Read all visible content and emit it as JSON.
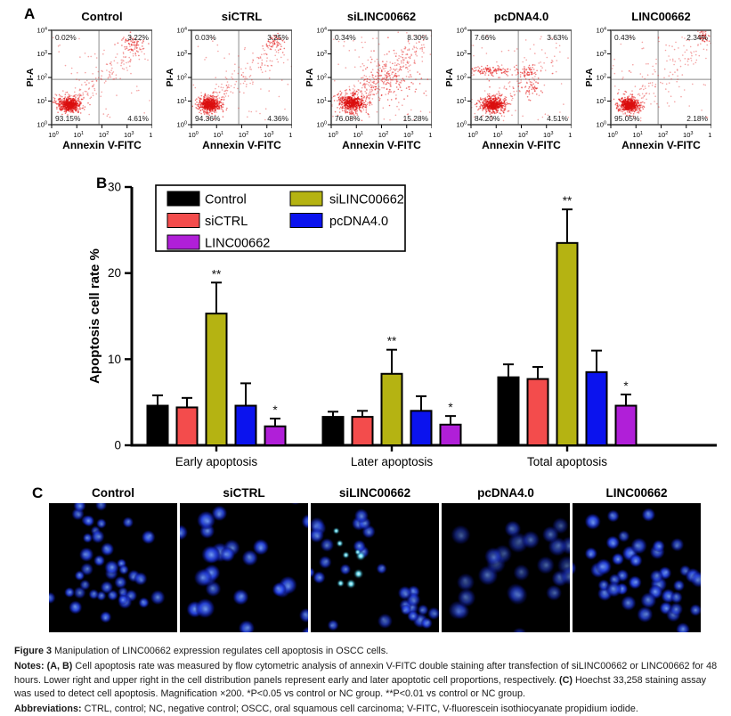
{
  "panel_a": {
    "label": "A",
    "y_axis_label": "PI-A",
    "x_axis_label": "Annexin V-FITC",
    "axis_base": "10",
    "y_tick_exponents": [
      "4",
      "3",
      "2",
      "1",
      "0"
    ],
    "x_tick_exponents": [
      "0",
      "1",
      "2",
      "3",
      "4"
    ],
    "dot_color": "#e41a1a",
    "plots": [
      {
        "title": "Control",
        "quadrants": {
          "ul": "0.02%",
          "ur": "3.22%",
          "ll": "93.15%",
          "lr": "4.61%"
        }
      },
      {
        "title": "siCTRL",
        "quadrants": {
          "ul": "0.03%",
          "ur": "3.25%",
          "ll": "94.36%",
          "lr": "4.36%"
        }
      },
      {
        "title": "siLINC00662",
        "quadrants": {
          "ul": "0.34%",
          "ur": "8.30%",
          "ll": "76.08%",
          "lr": "15.28%"
        }
      },
      {
        "title": "pcDNA4.0",
        "quadrants": {
          "ul": "7.66%",
          "ur": "3.63%",
          "ll": "84.20%",
          "lr": "4.51%"
        }
      },
      {
        "title": "LINC00662",
        "quadrants": {
          "ul": "0.43%",
          "ur": "2.34%",
          "ll": "95.05%",
          "lr": "2.18%"
        }
      }
    ]
  },
  "panel_b": {
    "label": "B"
  },
  "chart_data": {
    "type": "bar",
    "title": "",
    "xlabel": "",
    "ylabel": "Apoptosis cell rate %",
    "ylim": [
      0,
      30
    ],
    "yticks": [
      0,
      10,
      20,
      30
    ],
    "grid": false,
    "legend_position": "top-left",
    "categories": [
      "Early apoptosis",
      "Later apoptosis",
      "Total apoptosis"
    ],
    "series": [
      {
        "name": "Control",
        "color": "#000000",
        "values": [
          4.6,
          3.3,
          7.9
        ],
        "errors": [
          1.2,
          0.6,
          1.5
        ],
        "sig": [
          "",
          "",
          ""
        ]
      },
      {
        "name": "siCTRL",
        "color": "#f34c4c",
        "values": [
          4.4,
          3.3,
          7.7
        ],
        "errors": [
          1.1,
          0.7,
          1.4
        ],
        "sig": [
          "",
          "",
          ""
        ]
      },
      {
        "name": "siLINC00662",
        "color": "#b5b312",
        "values": [
          15.3,
          8.3,
          23.5
        ],
        "errors": [
          3.6,
          2.8,
          3.9
        ],
        "sig": [
          "**",
          "**",
          "**"
        ]
      },
      {
        "name": "pcDNA4.0",
        "color": "#0b13ee",
        "values": [
          4.6,
          4.0,
          8.5
        ],
        "errors": [
          2.6,
          1.7,
          2.5
        ],
        "sig": [
          "",
          "",
          ""
        ]
      },
      {
        "name": "LINC00662",
        "color": "#b01fd8",
        "values": [
          2.2,
          2.4,
          4.6
        ],
        "errors": [
          0.9,
          1.0,
          1.3
        ],
        "sig": [
          "*",
          "*",
          "*"
        ]
      }
    ],
    "legend_columns": [
      [
        "Control",
        "siCTRL",
        "LINC00662"
      ],
      [
        "siLINC00662",
        "pcDNA4.0"
      ]
    ]
  },
  "panel_c": {
    "label": "C",
    "images": [
      {
        "title": "Control"
      },
      {
        "title": "siCTRL"
      },
      {
        "title": "siLINC00662"
      },
      {
        "title": "pcDNA4.0"
      },
      {
        "title": "LINC00662"
      }
    ]
  },
  "caption": {
    "figure_label": "Figure 3",
    "figure_text": " Manipulation of LINC00662 expression regulates cell apoptosis in OSCC cells.",
    "notes_label": "Notes:",
    "notes_ab_bold": " (A, B)",
    "notes_seg1": " Cell apoptosis rate was measured by flow cytometric analysis of annexin V-FITC double staining after transfection of siLINC00662 or LINC00662 for 48 hours. Lower right and upper right in the cell distribution panels represent early and later apoptotic cell proportions, respectively. ",
    "notes_c_bold": "(C)",
    "notes_seg2": " Hoechst 33,258 staining assay was used to detect cell apoptosis. Magnification ×200. *P<0.05 vs control or NC group. **P<0.01 vs control or NC group.",
    "abbreviations_label": "Abbreviations:",
    "abbreviations_text": " CTRL, control; NC, negative control; OSCC, oral squamous cell carcinoma; V-FITC, V-fluorescein isothiocyanate propidium iodide."
  }
}
